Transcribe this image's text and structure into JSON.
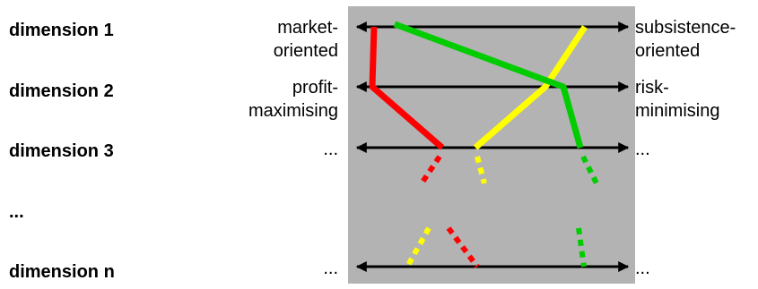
{
  "dimensions": [
    {
      "label": "dimension 1",
      "left_pole": [
        "market-",
        "oriented"
      ],
      "right_pole": [
        "subsistence-",
        "oriented"
      ]
    },
    {
      "label": "dimension 2",
      "left_pole": [
        "profit-",
        "maximising"
      ],
      "right_pole": [
        "risk-",
        "minimising"
      ]
    },
    {
      "label": "dimension 3",
      "left_pole": [
        "..."
      ],
      "right_pole": [
        "..."
      ]
    },
    {
      "label": "...",
      "left_pole": [],
      "right_pole": []
    },
    {
      "label": "dimension n",
      "left_pole": [
        "..."
      ],
      "right_pole": [
        "..."
      ]
    }
  ],
  "colors": {
    "panel": "#b3b3b3",
    "axis": "#000000",
    "profile_red": "#ff0000",
    "profile_yellow": "#ffff00",
    "profile_green": "#00cc00"
  }
}
